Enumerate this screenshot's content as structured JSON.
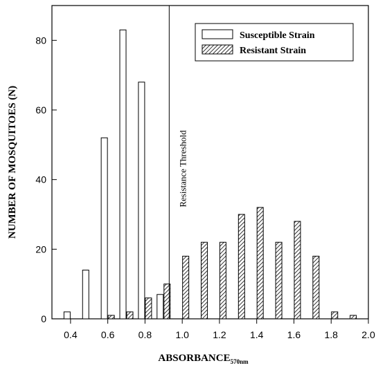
{
  "chart_data": {
    "type": "bar",
    "xlabel": "ABSORBANCE",
    "xlabel_subscript": "570nm",
    "ylabel": "NUMBER OF MOSQUITOES (N)",
    "xlim": [
      0.3,
      2.0
    ],
    "ylim": [
      0,
      90
    ],
    "x_ticks": [
      0.4,
      0.6,
      0.8,
      1.0,
      1.2,
      1.4,
      1.6,
      1.8,
      2.0
    ],
    "x_tick_labels": [
      "0.4",
      "0.6",
      "0.8",
      "1.0",
      "1.2",
      "1.4",
      "1.6",
      "1.8",
      "2.0"
    ],
    "y_ticks": [
      0,
      20,
      40,
      60,
      80
    ],
    "y_tick_labels": [
      "0",
      "20",
      "40",
      "60",
      "80"
    ],
    "legend_position": "top-right",
    "series": [
      {
        "name": "Susceptible Strain",
        "fill": "white",
        "points": [
          {
            "x": 0.4,
            "y": 2
          },
          {
            "x": 0.5,
            "y": 14
          },
          {
            "x": 0.6,
            "y": 52
          },
          {
            "x": 0.7,
            "y": 83
          },
          {
            "x": 0.8,
            "y": 68
          },
          {
            "x": 0.9,
            "y": 7
          }
        ]
      },
      {
        "name": "Resistant Strain",
        "fill": "hatched",
        "points": [
          {
            "x": 0.6,
            "y": 1
          },
          {
            "x": 0.7,
            "y": 2
          },
          {
            "x": 0.8,
            "y": 6
          },
          {
            "x": 0.9,
            "y": 10
          },
          {
            "x": 1.0,
            "y": 18
          },
          {
            "x": 1.1,
            "y": 22
          },
          {
            "x": 1.2,
            "y": 22
          },
          {
            "x": 1.3,
            "y": 30
          },
          {
            "x": 1.4,
            "y": 32
          },
          {
            "x": 1.5,
            "y": 22
          },
          {
            "x": 1.6,
            "y": 28
          },
          {
            "x": 1.7,
            "y": 18
          },
          {
            "x": 1.8,
            "y": 2
          },
          {
            "x": 1.9,
            "y": 1
          }
        ]
      }
    ],
    "threshold": {
      "x": 0.93,
      "label": "Resistance Threshold"
    }
  }
}
